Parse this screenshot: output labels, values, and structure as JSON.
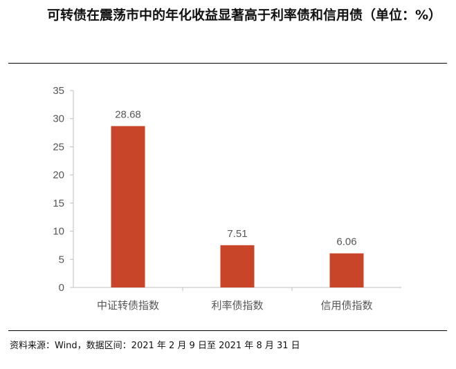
{
  "title": "可转债在震荡市中的年化收益显著高于利率债和信用债（单位：%）",
  "source": "资料来源：Wind，数据区间：2021 年 2 月 9 日至 2021 年 8 月 31 日",
  "colors": {
    "bar": "#c9452a",
    "axis": "#bfbfbf",
    "text": "#555555"
  },
  "chart_data": {
    "type": "bar",
    "categories": [
      "中证转债指数",
      "利率债指数",
      "信用债指数"
    ],
    "values": [
      28.68,
      7.51,
      6.06
    ],
    "value_labels": [
      "28.68",
      "7.51",
      "6.06"
    ],
    "ylim": [
      0,
      35
    ],
    "yticks": [
      0,
      5,
      10,
      15,
      20,
      25,
      30,
      35
    ],
    "grid": false,
    "legend": "none"
  }
}
